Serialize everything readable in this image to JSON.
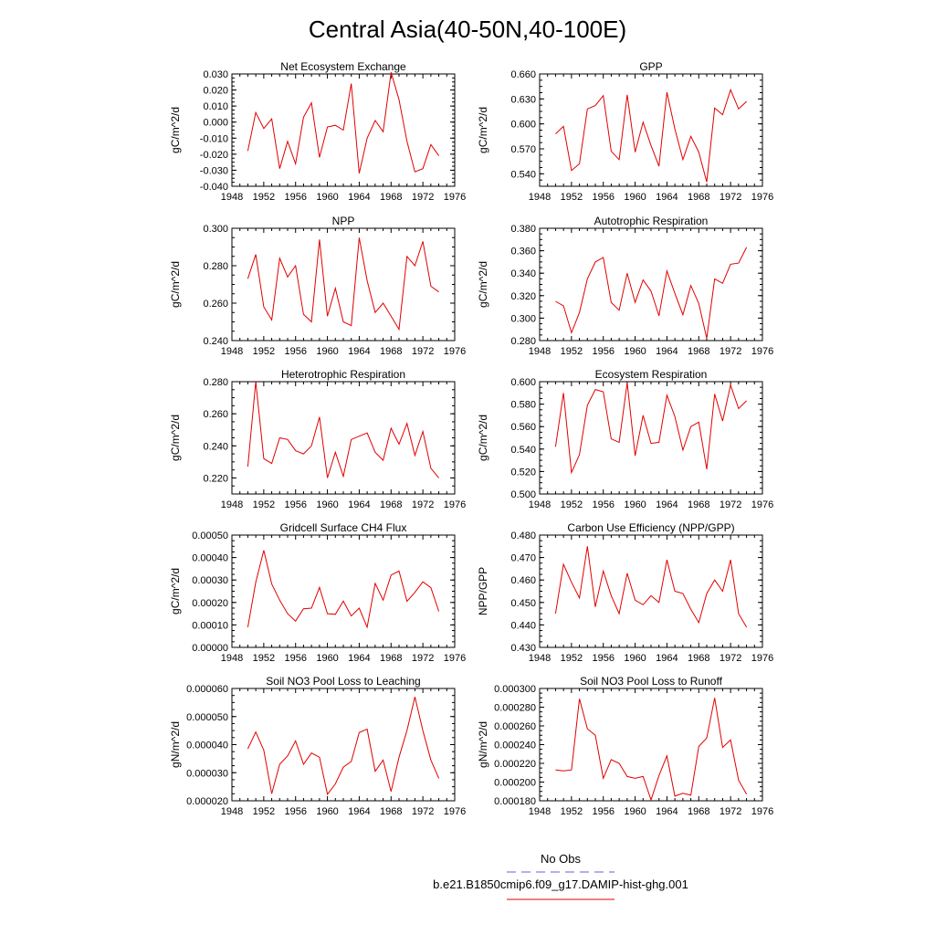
{
  "figure_title": "Central Asia(40-50N,40-100E)",
  "legend": {
    "entries": [
      {
        "label": "No Obs",
        "color": "#6060e0",
        "dash": "dashed"
      },
      {
        "label": "b.e21.B1850cmip6.f09_g17.DAMIP-hist-ghg.001",
        "color": "#e00000",
        "dash": "solid"
      }
    ]
  },
  "chart_data": [
    {
      "type": "line",
      "title": "Net Ecosystem Exchange",
      "ylabel": "gC/m^2/d",
      "xlim": [
        1948,
        1976
      ],
      "ylim": [
        -0.04,
        0.03
      ],
      "xticks": [
        "1948",
        "1952",
        "1956",
        "1960",
        "1964",
        "1968",
        "1972",
        "1976"
      ],
      "yticks": [
        "-0.040",
        "-0.030",
        "-0.020",
        "-0.010",
        "0.000",
        "0.010",
        "0.020",
        "0.030"
      ],
      "x": [
        1950,
        1951,
        1952,
        1953,
        1954,
        1955,
        1956,
        1957,
        1958,
        1959,
        1960,
        1961,
        1962,
        1963,
        1964,
        1965,
        1966,
        1967,
        1968,
        1969,
        1970,
        1971,
        1972,
        1973,
        1974
      ],
      "series": [
        {
          "color": "#e00000",
          "values": [
            -0.018,
            0.006,
            -0.004,
            0.002,
            -0.029,
            -0.012,
            -0.026,
            0.003,
            0.012,
            -0.022,
            -0.003,
            -0.002,
            -0.005,
            0.024,
            -0.032,
            -0.01,
            0.001,
            -0.006,
            0.031,
            0.014,
            -0.012,
            -0.031,
            -0.029,
            -0.014,
            -0.021
          ]
        }
      ]
    },
    {
      "type": "line",
      "title": "GPP",
      "ylabel": "gC/m^2/d",
      "xlim": [
        1948,
        1976
      ],
      "ylim": [
        0.525,
        0.66
      ],
      "xticks": [
        "1948",
        "1952",
        "1956",
        "1960",
        "1964",
        "1968",
        "1972",
        "1976"
      ],
      "yticks": [
        "0.540",
        "0.570",
        "0.600",
        "0.630",
        "0.660"
      ],
      "x": [
        1950,
        1951,
        1952,
        1953,
        1954,
        1955,
        1956,
        1957,
        1958,
        1959,
        1960,
        1961,
        1962,
        1963,
        1964,
        1965,
        1966,
        1967,
        1968,
        1969,
        1970,
        1971,
        1972,
        1973,
        1974
      ],
      "series": [
        {
          "color": "#e00000",
          "values": [
            0.588,
            0.597,
            0.544,
            0.552,
            0.618,
            0.622,
            0.634,
            0.567,
            0.557,
            0.635,
            0.566,
            0.602,
            0.574,
            0.549,
            0.638,
            0.594,
            0.557,
            0.585,
            0.566,
            0.53,
            0.619,
            0.611,
            0.641,
            0.618,
            0.627
          ]
        }
      ]
    },
    {
      "type": "line",
      "title": "NPP",
      "ylabel": "gC/m^2/d",
      "xlim": [
        1948,
        1976
      ],
      "ylim": [
        0.24,
        0.3
      ],
      "xticks": [
        "1948",
        "1952",
        "1956",
        "1960",
        "1964",
        "1968",
        "1972",
        "1976"
      ],
      "yticks": [
        "0.240",
        "0.260",
        "0.280",
        "0.300"
      ],
      "x": [
        1950,
        1951,
        1952,
        1953,
        1954,
        1955,
        1956,
        1957,
        1958,
        1959,
        1960,
        1961,
        1962,
        1963,
        1964,
        1965,
        1966,
        1967,
        1968,
        1969,
        1970,
        1971,
        1972,
        1973,
        1974
      ],
      "series": [
        {
          "color": "#e00000",
          "values": [
            0.273,
            0.286,
            0.258,
            0.251,
            0.284,
            0.274,
            0.28,
            0.254,
            0.25,
            0.294,
            0.253,
            0.268,
            0.25,
            0.248,
            0.295,
            0.272,
            0.255,
            0.26,
            0.253,
            0.246,
            0.285,
            0.28,
            0.293,
            0.269,
            0.266
          ]
        }
      ]
    },
    {
      "type": "line",
      "title": "Autotrophic Respiration",
      "ylabel": "gC/m^2/d",
      "xlim": [
        1948,
        1976
      ],
      "ylim": [
        0.28,
        0.38
      ],
      "xticks": [
        "1948",
        "1952",
        "1956",
        "1960",
        "1964",
        "1968",
        "1972",
        "1976"
      ],
      "yticks": [
        "0.280",
        "0.300",
        "0.320",
        "0.340",
        "0.360",
        "0.380"
      ],
      "x": [
        1950,
        1951,
        1952,
        1953,
        1954,
        1955,
        1956,
        1957,
        1958,
        1959,
        1960,
        1961,
        1962,
        1963,
        1964,
        1965,
        1966,
        1967,
        1968,
        1969,
        1970,
        1971,
        1972,
        1973,
        1974
      ],
      "series": [
        {
          "color": "#e00000",
          "values": [
            0.315,
            0.311,
            0.287,
            0.305,
            0.335,
            0.35,
            0.354,
            0.314,
            0.307,
            0.34,
            0.314,
            0.334,
            0.324,
            0.302,
            0.342,
            0.322,
            0.303,
            0.329,
            0.313,
            0.282,
            0.335,
            0.331,
            0.348,
            0.349,
            0.363
          ]
        }
      ]
    },
    {
      "type": "line",
      "title": "Heterotrophic Respiration",
      "ylabel": "gC/m^2/d",
      "xlim": [
        1948,
        1976
      ],
      "ylim": [
        0.21,
        0.28
      ],
      "xticks": [
        "1948",
        "1952",
        "1956",
        "1960",
        "1964",
        "1968",
        "1972",
        "1976"
      ],
      "yticks": [
        "0.220",
        "0.240",
        "0.260",
        "0.280"
      ],
      "x": [
        1950,
        1951,
        1952,
        1953,
        1954,
        1955,
        1956,
        1957,
        1958,
        1959,
        1960,
        1961,
        1962,
        1963,
        1964,
        1965,
        1966,
        1967,
        1968,
        1969,
        1970,
        1971,
        1972,
        1973,
        1974
      ],
      "series": [
        {
          "color": "#e00000",
          "values": [
            0.227,
            0.28,
            0.232,
            0.229,
            0.245,
            0.244,
            0.237,
            0.235,
            0.24,
            0.258,
            0.22,
            0.236,
            0.221,
            0.244,
            0.246,
            0.248,
            0.236,
            0.231,
            0.251,
            0.241,
            0.254,
            0.234,
            0.249,
            0.226,
            0.22
          ]
        }
      ]
    },
    {
      "type": "line",
      "title": "Ecosystem Respiration",
      "ylabel": "gC/m^2/d",
      "xlim": [
        1948,
        1976
      ],
      "ylim": [
        0.5,
        0.6
      ],
      "xticks": [
        "1948",
        "1952",
        "1956",
        "1960",
        "1964",
        "1968",
        "1972",
        "1976"
      ],
      "yticks": [
        "0.500",
        "0.520",
        "0.540",
        "0.560",
        "0.580",
        "0.600"
      ],
      "x": [
        1950,
        1951,
        1952,
        1953,
        1954,
        1955,
        1956,
        1957,
        1958,
        1959,
        1960,
        1961,
        1962,
        1963,
        1964,
        1965,
        1966,
        1967,
        1968,
        1969,
        1970,
        1971,
        1972,
        1973,
        1974
      ],
      "series": [
        {
          "color": "#e00000",
          "values": [
            0.542,
            0.59,
            0.519,
            0.535,
            0.579,
            0.593,
            0.591,
            0.549,
            0.546,
            0.599,
            0.534,
            0.57,
            0.545,
            0.546,
            0.588,
            0.569,
            0.539,
            0.56,
            0.564,
            0.522,
            0.589,
            0.565,
            0.597,
            0.576,
            0.583
          ]
        }
      ]
    },
    {
      "type": "line",
      "title": "Gridcell Surface CH4 Flux",
      "ylabel": "gC/m^2/d",
      "xlim": [
        1948,
        1976
      ],
      "ylim": [
        0.0,
        0.0005
      ],
      "xticks": [
        "1948",
        "1952",
        "1956",
        "1960",
        "1964",
        "1968",
        "1972",
        "1976"
      ],
      "yticks": [
        "0.00000",
        "0.00010",
        "0.00020",
        "0.00030",
        "0.00040",
        "0.00050"
      ],
      "x": [
        1950,
        1951,
        1952,
        1953,
        1954,
        1955,
        1956,
        1957,
        1958,
        1959,
        1960,
        1961,
        1962,
        1963,
        1964,
        1965,
        1966,
        1967,
        1968,
        1969,
        1970,
        1971,
        1972,
        1973,
        1974
      ],
      "series": [
        {
          "color": "#e00000",
          "values": [
            9e-05,
            0.00029,
            0.000432,
            0.000282,
            0.00021,
            0.00015,
            0.000117,
            0.000172,
            0.000175,
            0.000267,
            0.00015,
            0.000147,
            0.000206,
            0.00014,
            0.000175,
            9e-05,
            0.000285,
            0.00021,
            0.000322,
            0.00034,
            0.000205,
            0.000245,
            0.000292,
            0.000266,
            0.00016
          ]
        }
      ]
    },
    {
      "type": "line",
      "title": "Carbon Use Efficiency (NPP/GPP)",
      "ylabel": "NPP/GPP",
      "xlim": [
        1948,
        1976
      ],
      "ylim": [
        0.43,
        0.48
      ],
      "xticks": [
        "1948",
        "1952",
        "1956",
        "1960",
        "1964",
        "1968",
        "1972",
        "1976"
      ],
      "yticks": [
        "0.430",
        "0.440",
        "0.450",
        "0.460",
        "0.470",
        "0.480"
      ],
      "x": [
        1950,
        1951,
        1952,
        1953,
        1954,
        1955,
        1956,
        1957,
        1958,
        1959,
        1960,
        1961,
        1962,
        1963,
        1964,
        1965,
        1966,
        1967,
        1968,
        1969,
        1970,
        1971,
        1972,
        1973,
        1974
      ],
      "series": [
        {
          "color": "#e00000",
          "values": [
            0.445,
            0.467,
            0.459,
            0.452,
            0.475,
            0.448,
            0.464,
            0.453,
            0.445,
            0.463,
            0.451,
            0.449,
            0.453,
            0.45,
            0.469,
            0.455,
            0.454,
            0.447,
            0.441,
            0.454,
            0.46,
            0.455,
            0.469,
            0.445,
            0.439
          ]
        }
      ]
    },
    {
      "type": "line",
      "title": "Soil NO3 Pool Loss to Leaching",
      "ylabel": "gN/m^2/d",
      "xlim": [
        1948,
        1976
      ],
      "ylim": [
        2e-05,
        6e-05
      ],
      "xticks": [
        "1948",
        "1952",
        "1956",
        "1960",
        "1964",
        "1968",
        "1972",
        "1976"
      ],
      "yticks": [
        "0.000020",
        "0.000030",
        "0.000040",
        "0.000050",
        "0.000060"
      ],
      "x": [
        1950,
        1951,
        1952,
        1953,
        1954,
        1955,
        1956,
        1957,
        1958,
        1959,
        1960,
        1961,
        1962,
        1963,
        1964,
        1965,
        1966,
        1967,
        1968,
        1969,
        1970,
        1971,
        1972,
        1973,
        1974
      ],
      "series": [
        {
          "color": "#e00000",
          "values": [
            3.85e-05,
            4.45e-05,
            3.8e-05,
            2.25e-05,
            3.3e-05,
            3.6e-05,
            4.13e-05,
            3.3e-05,
            3.7e-05,
            3.55e-05,
            2.23e-05,
            2.6e-05,
            3.2e-05,
            3.4e-05,
            4.43e-05,
            4.55e-05,
            3.05e-05,
            3.45e-05,
            2.33e-05,
            3.55e-05,
            4.5e-05,
            5.7e-05,
            4.5e-05,
            3.45e-05,
            2.8e-05
          ]
        }
      ]
    },
    {
      "type": "line",
      "title": "Soil NO3 Pool Loss to Runoff",
      "ylabel": "gN/m^2/d",
      "xlim": [
        1948,
        1976
      ],
      "ylim": [
        0.00018,
        0.0003
      ],
      "xticks": [
        "1948",
        "1952",
        "1956",
        "1960",
        "1964",
        "1968",
        "1972",
        "1976"
      ],
      "yticks": [
        "0.000180",
        "0.000200",
        "0.000220",
        "0.000240",
        "0.000260",
        "0.000280",
        "0.000300"
      ],
      "x": [
        1950,
        1951,
        1952,
        1953,
        1954,
        1955,
        1956,
        1957,
        1958,
        1959,
        1960,
        1961,
        1962,
        1963,
        1964,
        1965,
        1966,
        1967,
        1968,
        1969,
        1970,
        1971,
        1972,
        1973,
        1974
      ],
      "series": [
        {
          "color": "#e00000",
          "values": [
            0.000213,
            0.000212,
            0.000213,
            0.000289,
            0.000257,
            0.00025,
            0.000204,
            0.000224,
            0.00022,
            0.000206,
            0.000204,
            0.000206,
            0.000181,
            0.000207,
            0.000228,
            0.000185,
            0.000188,
            0.000186,
            0.000238,
            0.000247,
            0.00029,
            0.000237,
            0.000245,
            0.000202,
            0.000187
          ]
        }
      ]
    }
  ]
}
